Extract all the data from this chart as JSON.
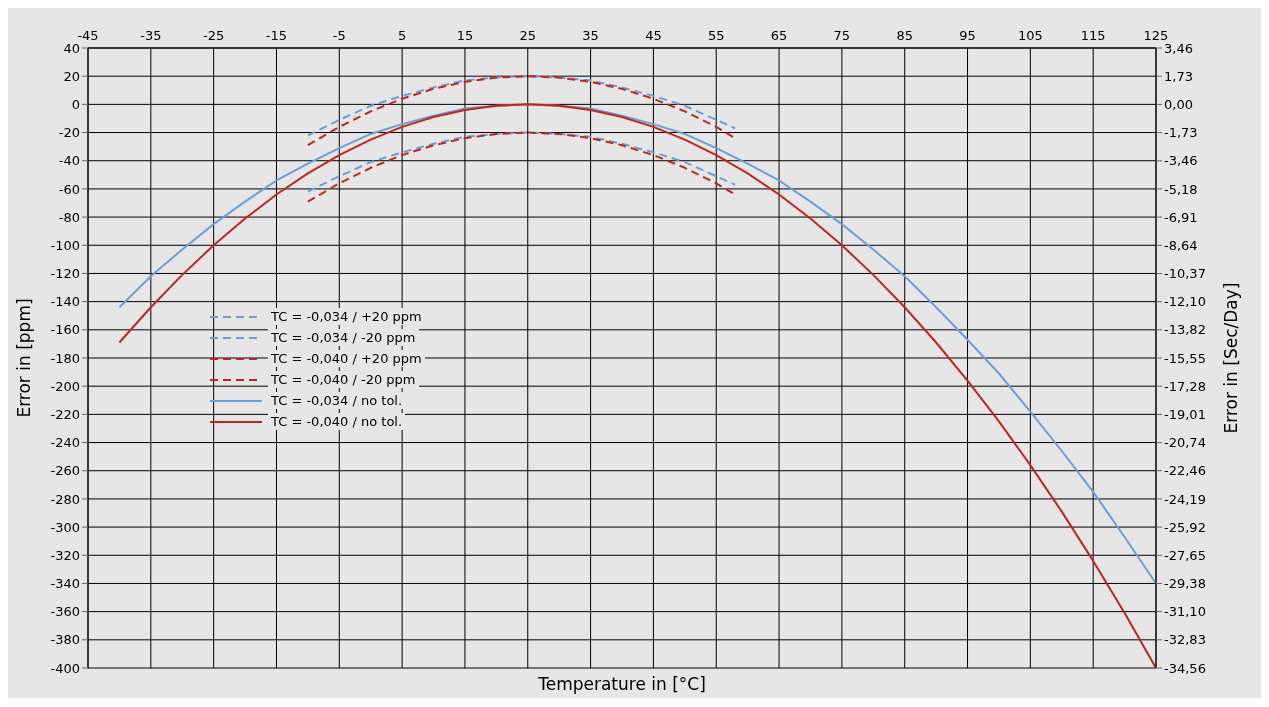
{
  "chart_data": {
    "type": "line",
    "xlabel": "Temperature in [°C]",
    "ylabel": "Error in [ppm]",
    "y2label": "Error in [Sec/Day]",
    "xlim": [
      -45,
      125
    ],
    "xticks": [
      -45,
      -35,
      -25,
      -15,
      -5,
      5,
      15,
      25,
      35,
      45,
      55,
      65,
      75,
      85,
      95,
      105,
      115,
      125
    ],
    "ylim": [
      -400,
      40
    ],
    "yticks": [
      -400,
      -380,
      -360,
      -340,
      -320,
      -300,
      -280,
      -260,
      -240,
      -220,
      -200,
      -180,
      -160,
      -140,
      -120,
      -100,
      -80,
      -60,
      -40,
      -20,
      0,
      20,
      40
    ],
    "y2lim": [
      -34.56,
      3.46
    ],
    "y2ticks": [
      {
        "value": -34.56,
        "label": "-34,56"
      },
      {
        "value": -32.83,
        "label": "-32,83"
      },
      {
        "value": -31.1,
        "label": "-31,10"
      },
      {
        "value": -29.38,
        "label": "-29,38"
      },
      {
        "value": -27.65,
        "label": "-27,65"
      },
      {
        "value": -25.92,
        "label": "-25,92"
      },
      {
        "value": -24.19,
        "label": "-24,19"
      },
      {
        "value": -22.46,
        "label": "-22,46"
      },
      {
        "value": -20.74,
        "label": "-20,74"
      },
      {
        "value": -19.01,
        "label": "-19,01"
      },
      {
        "value": -17.28,
        "label": "-17,28"
      },
      {
        "value": -15.55,
        "label": "-15,55"
      },
      {
        "value": -13.82,
        "label": "-13,82"
      },
      {
        "value": -12.1,
        "label": "-12,10"
      },
      {
        "value": -10.37,
        "label": "-10,37"
      },
      {
        "value": -8.64,
        "label": "-8,64"
      },
      {
        "value": -6.91,
        "label": "-6,91"
      },
      {
        "value": -5.18,
        "label": "-5,18"
      },
      {
        "value": -3.46,
        "label": "-3,46"
      },
      {
        "value": -1.73,
        "label": "-1,73"
      },
      {
        "value": 0,
        "label": "0,00"
      },
      {
        "value": 1.73,
        "label": "1,73"
      },
      {
        "value": 3.46,
        "label": "3,46"
      }
    ],
    "grid": true,
    "legend": "left",
    "marker": "none",
    "series": [
      {
        "name": "TC = -0,034 / +20 ppm",
        "color": "#6a9fd8",
        "line_style": "dashed",
        "x": [
          -10,
          -5,
          0,
          5,
          10,
          15,
          20,
          25,
          30,
          35,
          40,
          45,
          50,
          55,
          58
        ],
        "values": [
          -22,
          -11,
          -1,
          6,
          12,
          17,
          19,
          20,
          19,
          17,
          12,
          6,
          -1,
          -11,
          -17
        ]
      },
      {
        "name": "TC = -0,034 / -20 ppm",
        "color": "#6a9fd8",
        "line_style": "dashed",
        "x": [
          -10,
          -5,
          0,
          5,
          10,
          15,
          20,
          25,
          30,
          35,
          40,
          45,
          50,
          55,
          58
        ],
        "values": [
          -62,
          -51,
          -41,
          -34,
          -28,
          -23,
          -21,
          -20,
          -21,
          -23,
          -28,
          -34,
          -41,
          -51,
          -57
        ]
      },
      {
        "name": "TC = -0,040 / +20 ppm",
        "color": "#c0261c",
        "line_style": "dashed",
        "x": [
          -10,
          -5,
          0,
          5,
          10,
          15,
          20,
          25,
          30,
          35,
          40,
          45,
          50,
          55,
          58
        ],
        "values": [
          -29,
          -16,
          -5,
          4,
          11,
          16,
          19,
          20,
          19,
          16,
          11,
          4,
          -5,
          -16,
          -24
        ]
      },
      {
        "name": "TC = -0,040 / -20 ppm",
        "color": "#c0261c",
        "line_style": "dashed",
        "x": [
          -10,
          -5,
          0,
          5,
          10,
          15,
          20,
          25,
          30,
          35,
          40,
          45,
          50,
          55,
          58
        ],
        "values": [
          -69,
          -56,
          -45,
          -36,
          -29,
          -24,
          -21,
          -20,
          -21,
          -24,
          -29,
          -36,
          -45,
          -56,
          -64
        ]
      },
      {
        "name": "TC = -0,034 / no tol.",
        "color": "#6a9fd8",
        "line_style": "solid",
        "x": [
          -40,
          -35,
          -30,
          -25,
          -20,
          -15,
          -10,
          -5,
          0,
          5,
          10,
          15,
          20,
          25,
          30,
          35,
          40,
          45,
          50,
          55,
          60,
          65,
          70,
          75,
          80,
          85,
          90,
          95,
          100,
          105,
          110,
          115,
          120,
          125
        ],
        "values": [
          -144,
          -122,
          -103,
          -85,
          -69,
          -54,
          -42,
          -31,
          -21,
          -14,
          -8,
          -3,
          -1,
          0,
          -1,
          -3,
          -8,
          -14,
          -21,
          -31,
          -42,
          -54,
          -69,
          -85,
          -103,
          -122,
          -144,
          -167,
          -191,
          -218,
          -246,
          -275,
          -307,
          -340
        ]
      },
      {
        "name": "TC = -0,040 / no tol.",
        "color": "#c0261c",
        "line_style": "solid",
        "x": [
          -40,
          -35,
          -30,
          -25,
          -20,
          -15,
          -10,
          -5,
          0,
          5,
          10,
          15,
          20,
          25,
          30,
          35,
          40,
          45,
          50,
          55,
          60,
          65,
          70,
          75,
          80,
          85,
          90,
          95,
          100,
          105,
          110,
          115,
          120,
          125
        ],
        "values": [
          -169,
          -144,
          -121,
          -100,
          -81,
          -64,
          -49,
          -36,
          -25,
          -16,
          -9,
          -4,
          -1,
          0,
          -1,
          -4,
          -9,
          -16,
          -25,
          -36,
          -49,
          -64,
          -81,
          -100,
          -121,
          -144,
          -169,
          -196,
          -225,
          -256,
          -289,
          -324,
          -361,
          -400
        ]
      }
    ]
  }
}
